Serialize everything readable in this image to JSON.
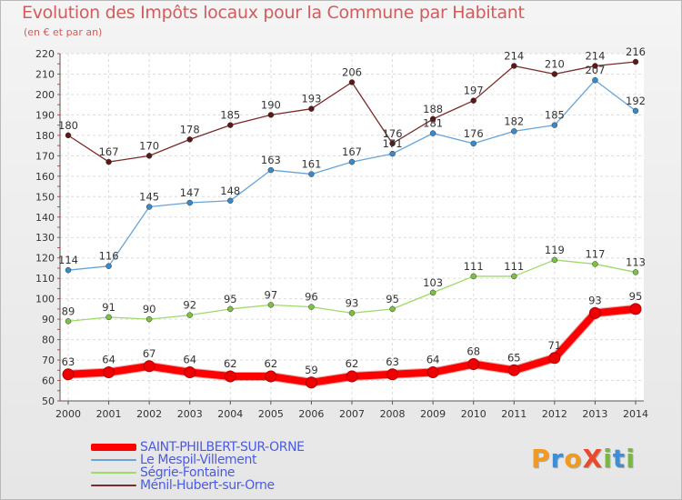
{
  "title": "Evolution des Impôts locaux pour la Commune par Habitant",
  "subtitle": "(en € et par an)",
  "logo": {
    "text": "ProXiti",
    "letters": [
      "P",
      "r",
      "o",
      "X",
      "i",
      "t",
      "i"
    ],
    "colors": [
      "#f29a1f",
      "#3c8fd6",
      "#f29a1f",
      "#e84a2e",
      "#79b83f",
      "#3c8fd6",
      "#79b83f"
    ]
  },
  "chart_data": {
    "type": "line",
    "title": "Evolution des Impôts locaux pour la Commune par Habitant",
    "subtitle": "(en € et par an)",
    "xlabel": "",
    "ylabel": "",
    "x": [
      "2000",
      "2001",
      "2002",
      "2003",
      "2004",
      "2005",
      "2006",
      "2007",
      "2008",
      "2009",
      "2010",
      "2011",
      "2012",
      "2013",
      "2014"
    ],
    "ylim": [
      50,
      220
    ],
    "yticks": [
      50,
      60,
      70,
      80,
      90,
      100,
      110,
      120,
      130,
      140,
      150,
      160,
      170,
      180,
      190,
      200,
      210,
      220
    ],
    "grid": true,
    "legend_position": "bottom-left",
    "series": [
      {
        "name": "SAINT-PHILBERT-SUR-ORNE",
        "color": "#ff0000",
        "marker": "#ee0000",
        "width": 8,
        "values": [
          63,
          64,
          67,
          64,
          62,
          62,
          59,
          62,
          63,
          64,
          68,
          65,
          71,
          93,
          95
        ],
        "labels": [
          "63",
          "64",
          "67",
          "64",
          "62",
          "62",
          "59",
          "62",
          "63",
          "64",
          "68",
          "65",
          "71",
          "93",
          "95"
        ]
      },
      {
        "name": "Le Mespil-Villement",
        "color": "#6aa3d6",
        "marker": "#3a89c9",
        "width": 1.3,
        "values": [
          114,
          116,
          145,
          147,
          148,
          163,
          161,
          167,
          171,
          181,
          176,
          182,
          185,
          207,
          192
        ],
        "labels": [
          "114",
          "116",
          "145",
          "147",
          "148",
          "163",
          "161",
          "167",
          "171",
          "181",
          "176",
          "182",
          "185",
          "207",
          "192"
        ]
      },
      {
        "name": "Ségrie-Fontaine",
        "color": "#9fd96a",
        "marker": "#7cc242",
        "width": 1.3,
        "values": [
          89,
          91,
          90,
          92,
          95,
          97,
          96,
          93,
          95,
          103,
          111,
          111,
          119,
          117,
          113
        ],
        "labels": [
          "89",
          "91",
          "90",
          "92",
          "95",
          "97",
          "96",
          "93",
          "95",
          "103",
          "111",
          "111",
          "119",
          "117",
          "113"
        ]
      },
      {
        "name": "Ménil-Hubert-sur-Orne",
        "color": "#7a2b2b",
        "marker": "#5e1717",
        "width": 1.3,
        "values": [
          180,
          167,
          170,
          178,
          185,
          190,
          193,
          206,
          176,
          188,
          197,
          214,
          210,
          214,
          216
        ],
        "labels": [
          "180",
          "167",
          "170",
          "178",
          "185",
          "190",
          "193",
          "206",
          "176",
          "188",
          "197",
          "214",
          "210",
          "214",
          "216"
        ]
      }
    ]
  }
}
